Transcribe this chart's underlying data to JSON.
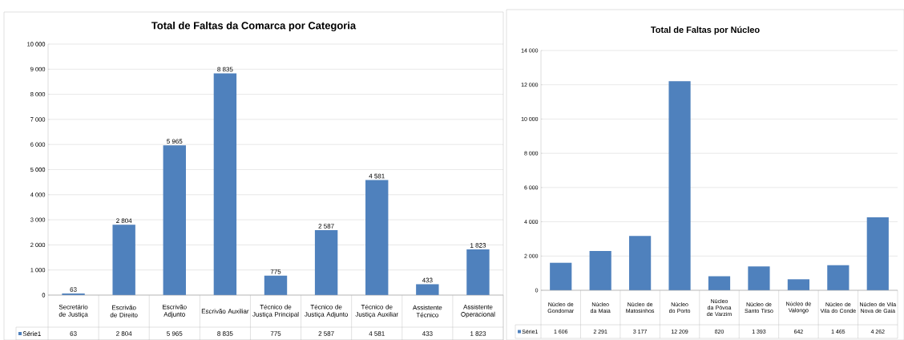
{
  "chart_data": [
    {
      "type": "bar",
      "title": "Total de Faltas da Comarca por Categoria",
      "categories": [
        "Secretário de Justiça",
        "Escrivão de Direito",
        "Escrivão Adjunto",
        "Escrivão Auxiliar",
        "Técnico de Justiça Principal",
        "Técnico de Justiça Adjunto",
        "Técnico de Justiça Auxiliar",
        "Assistente Técnico",
        "Assistente Operacional"
      ],
      "series": [
        {
          "name": "Série1",
          "color": "#4f81bd",
          "values": [
            63,
            2804,
            5965,
            8835,
            775,
            2587,
            4581,
            433,
            1823
          ],
          "value_labels": [
            "63",
            "2 804",
            "5 965",
            "8 835",
            "775",
            "2 587",
            "4 581",
            "433",
            "1 823"
          ]
        }
      ],
      "data_labels": true,
      "legend": "bottom",
      "grid": "y",
      "ylim": [
        0,
        10000
      ],
      "yticks": [
        0,
        {
          "value": 1000,
          "label": "1 000"
        },
        {
          "value": 2000,
          "label": "2 000"
        },
        {
          "value": 3000,
          "label": "3 000"
        },
        {
          "value": 4000,
          "label": "4 000"
        },
        {
          "value": 5000,
          "label": "5 000"
        },
        {
          "value": 6000,
          "label": "6 000"
        },
        {
          "value": 7000,
          "label": "7 000"
        },
        {
          "value": 8000,
          "label": "8 000"
        },
        {
          "value": 9000,
          "label": "9 000"
        },
        {
          "value": 10000,
          "label": "10 000"
        }
      ]
    },
    {
      "type": "bar",
      "title": "Total de Faltas por Núcleo",
      "categories": [
        "Núcleo de Gondomar",
        "Núcleo da Maia",
        "Núcleo de Matosinhos",
        "Núcleo do Porto",
        "Núcleo da Póvoa de Varzim",
        "Núcleo de Santo Tirso",
        "Núcleo de Valongo",
        "Núcleo de Vila do Conde",
        "Núcleo de Vila Nova de Gaia"
      ],
      "series": [
        {
          "name": "Série1",
          "color": "#4f81bd",
          "values": [
            1606,
            2291,
            3177,
            12209,
            820,
            1393,
            642,
            1465,
            4262
          ],
          "value_labels": [
            "1 606",
            "2 291",
            "3 177",
            "12 209",
            "820",
            "1 393",
            "642",
            "1 465",
            "4 262"
          ]
        }
      ],
      "legend": "bottom",
      "grid": "y",
      "ylim": [
        0,
        14000
      ],
      "yticks": [
        0,
        {
          "value": 2000,
          "label": "2 000"
        },
        {
          "value": 4000,
          "label": "4 000"
        },
        {
          "value": 6000,
          "label": "6 000"
        },
        {
          "value": 8000,
          "label": "8 000"
        },
        {
          "value": 10000,
          "label": "10 000"
        },
        {
          "value": 12000,
          "label": "12 000"
        },
        {
          "value": 14000,
          "label": "14 000"
        }
      ]
    }
  ]
}
